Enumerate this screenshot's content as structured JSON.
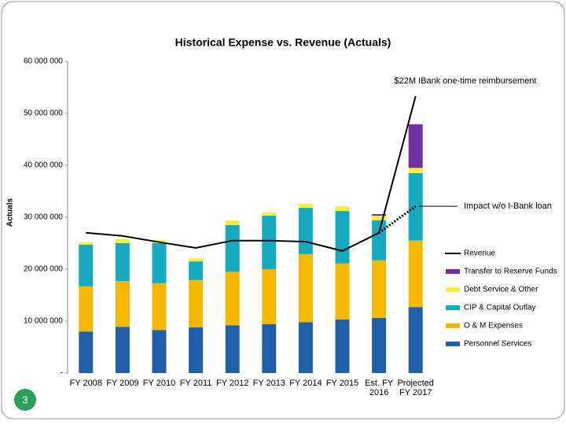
{
  "slide": {
    "page_number": "3"
  },
  "chart_data": {
    "type": "bar",
    "stacked": true,
    "title": "Historical Expense vs. Revenue (Actuals)",
    "y_label": "Actuals",
    "annotation": "$22M IBank one-time reimbursement",
    "categories": [
      "FY 2008",
      "FY 2009",
      "FY 2010",
      "FY 2011",
      "FY 2012",
      "FY 2013",
      "FY 2014",
      "FY 2015",
      "Est. FY 2016",
      "Projected FY 2017"
    ],
    "ylim": [
      0,
      60000000
    ],
    "yticks": [
      {
        "value": 0,
        "label": "-"
      },
      {
        "value": 10000000,
        "label": "10 000 000"
      },
      {
        "value": 20000000,
        "label": "20 000 000"
      },
      {
        "value": 30000000,
        "label": "30 000 000"
      },
      {
        "value": 40000000,
        "label": "40 000 000"
      },
      {
        "value": 50000000,
        "label": "50 000 000"
      },
      {
        "value": 60000000,
        "label": "60 000 000"
      }
    ],
    "legend": "right",
    "series": [
      {
        "name": "Personnel Services",
        "type": "bar",
        "color": "#1f5fa8",
        "values": [
          8000000,
          8900000,
          8300000,
          8800000,
          9200000,
          9400000,
          9800000,
          10300000,
          10600000,
          12700000
        ]
      },
      {
        "name": "O & M Expenses",
        "type": "bar",
        "color": "#f5b800",
        "values": [
          8700000,
          8800000,
          9000000,
          9100000,
          10300000,
          10600000,
          13100000,
          10800000,
          11100000,
          12800000
        ]
      },
      {
        "name": "CIP & Capital Outlay",
        "type": "bar",
        "color": "#17a9c0",
        "values": [
          8000000,
          7300000,
          7700000,
          3600000,
          9000000,
          10300000,
          8900000,
          10100000,
          7700000,
          13000000
        ]
      },
      {
        "name": "Debt Service & Other",
        "type": "bar",
        "color": "#f4f040",
        "values": [
          500000,
          800000,
          600000,
          600000,
          900000,
          600000,
          800000,
          900000,
          900000,
          1000000
        ]
      },
      {
        "name": "Transfer to Reserve Funds",
        "type": "bar",
        "color": "#7030a0",
        "values": [
          0,
          0,
          0,
          0,
          0,
          0,
          0,
          0,
          300000,
          8400000
        ]
      },
      {
        "name": "Revenue",
        "type": "line",
        "color": "#000000",
        "values": [
          27000000,
          26400000,
          25200000,
          24100000,
          25500000,
          25500000,
          25300000,
          23500000,
          27000000,
          53300000
        ]
      },
      {
        "name": "Impact w/o I-Bank loan",
        "type": "line",
        "style": "dotted",
        "color": "#000000",
        "values": [
          null,
          null,
          null,
          null,
          null,
          null,
          null,
          null,
          27000000,
          32100000
        ]
      }
    ]
  }
}
